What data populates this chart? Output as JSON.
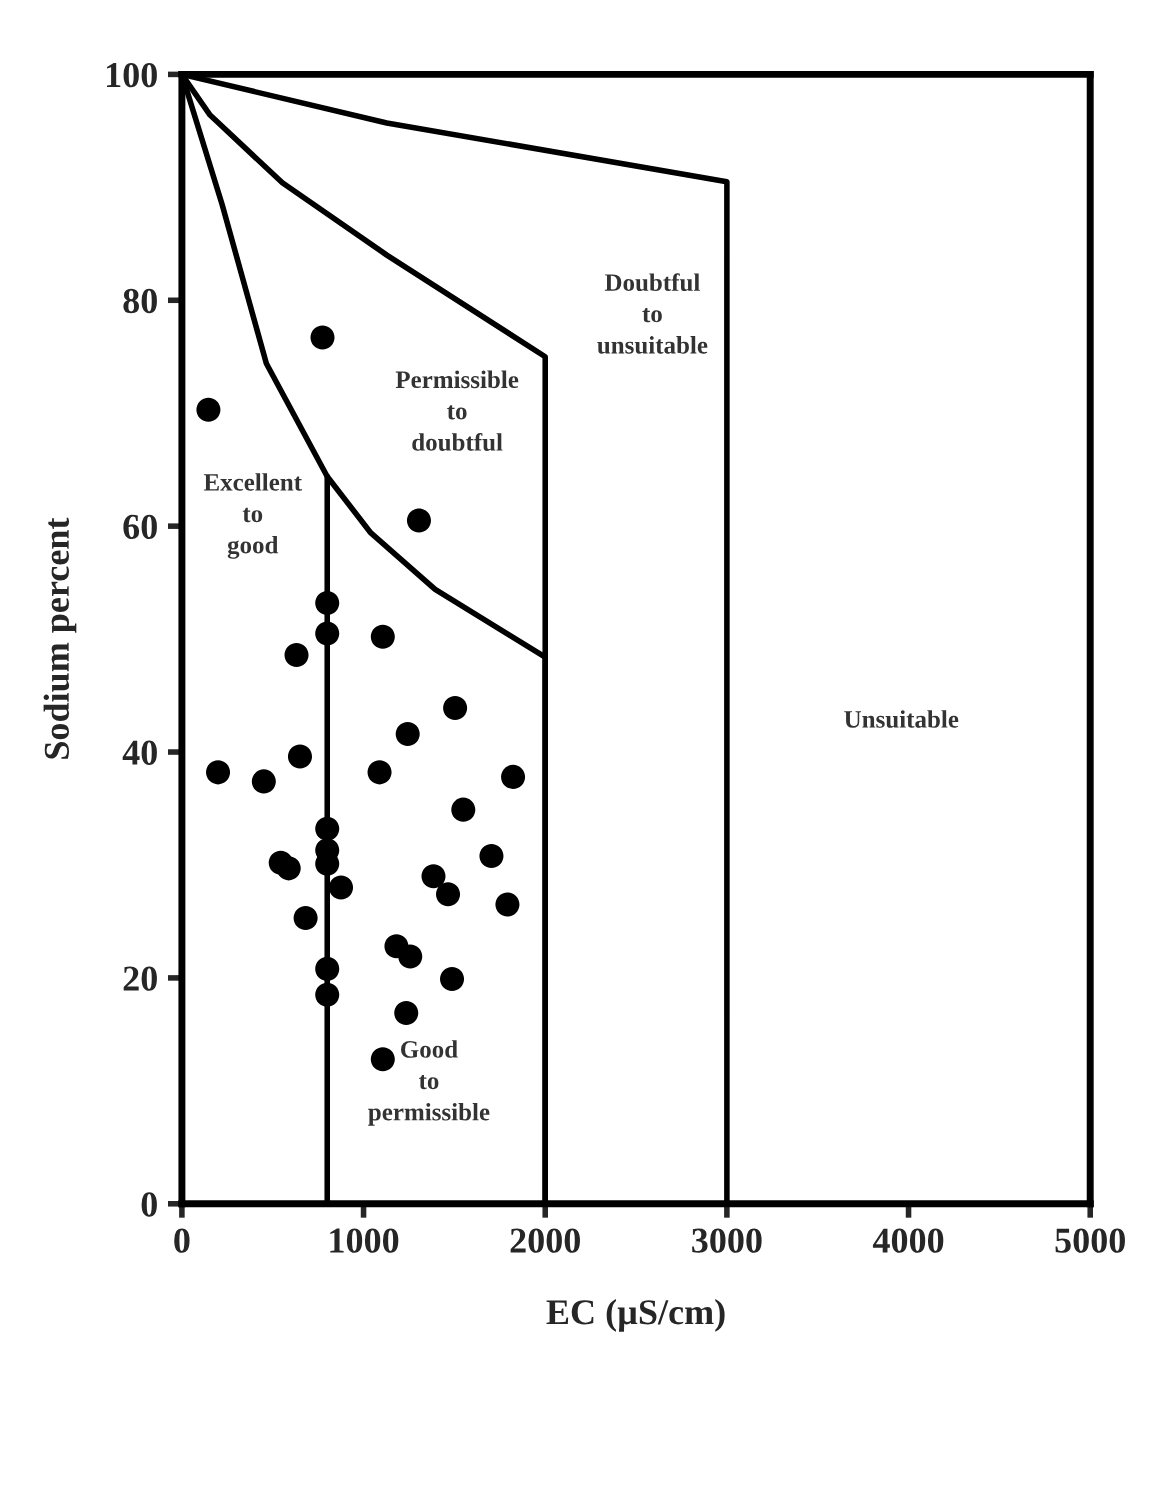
{
  "chart_data": {
    "type": "scatter",
    "xlabel": "EC (µS/cm)",
    "ylabel": "Sodium percent",
    "xlim": [
      0,
      5000
    ],
    "ylim": [
      0,
      100
    ],
    "xticks": [
      0,
      1000,
      2000,
      3000,
      4000,
      5000
    ],
    "yticks": [
      0,
      20,
      40,
      60,
      80,
      100
    ],
    "grid": false,
    "series": [
      {
        "marker": "circle",
        "color": "#000000",
        "x": [
          146,
          774,
          1305,
          800,
          800,
          631,
          1106,
          1504,
          1243,
          650,
          199,
          451,
          1088,
          1823,
          1549,
          800,
          800,
          800,
          544,
          588,
          876,
          1385,
          1465,
          1704,
          1792,
          681,
          1181,
          1257,
          1487,
          800,
          800,
          1235,
          1106
        ],
        "values": [
          70.3,
          76.7,
          60.5,
          53.2,
          50.5,
          48.6,
          50.2,
          43.9,
          41.6,
          39.6,
          38.2,
          37.4,
          38.2,
          37.8,
          34.9,
          33.2,
          31.3,
          30.1,
          30.2,
          29.7,
          28.0,
          29.0,
          27.4,
          30.8,
          26.5,
          25.3,
          22.8,
          21.9,
          19.9,
          20.8,
          18.5,
          16.9,
          12.8
        ]
      },
      {
        "type": "line",
        "marker": "none",
        "color": "#000000",
        "x": [
          0,
          1128,
          3000,
          3000
        ],
        "values": [
          100,
          95.7,
          90.5,
          0
        ]
      },
      {
        "type": "line",
        "marker": "none",
        "color": "#000000",
        "x": [
          0,
          155,
          553,
          1128,
          2000,
          2000
        ],
        "values": [
          100,
          96.4,
          90.4,
          84,
          75,
          0
        ]
      },
      {
        "type": "line",
        "marker": "none",
        "color": "#000000",
        "x": [
          0,
          221,
          465,
          800,
          1040,
          1394,
          2000,
          2000
        ],
        "values": [
          100,
          88.5,
          74.4,
          64.4,
          59.4,
          54.4,
          48.4,
          0
        ]
      },
      {
        "type": "line",
        "marker": "none",
        "color": "#000000",
        "x": [
          800,
          800
        ],
        "values": [
          64.4,
          0
        ]
      }
    ],
    "annotations": [
      "Excellent\nto\ngood",
      "Permissible\nto\ndoubtful",
      "Doubtful\nto\nunsuitable",
      "Unsuitable",
      "Good\nto\npermissible"
    ]
  }
}
